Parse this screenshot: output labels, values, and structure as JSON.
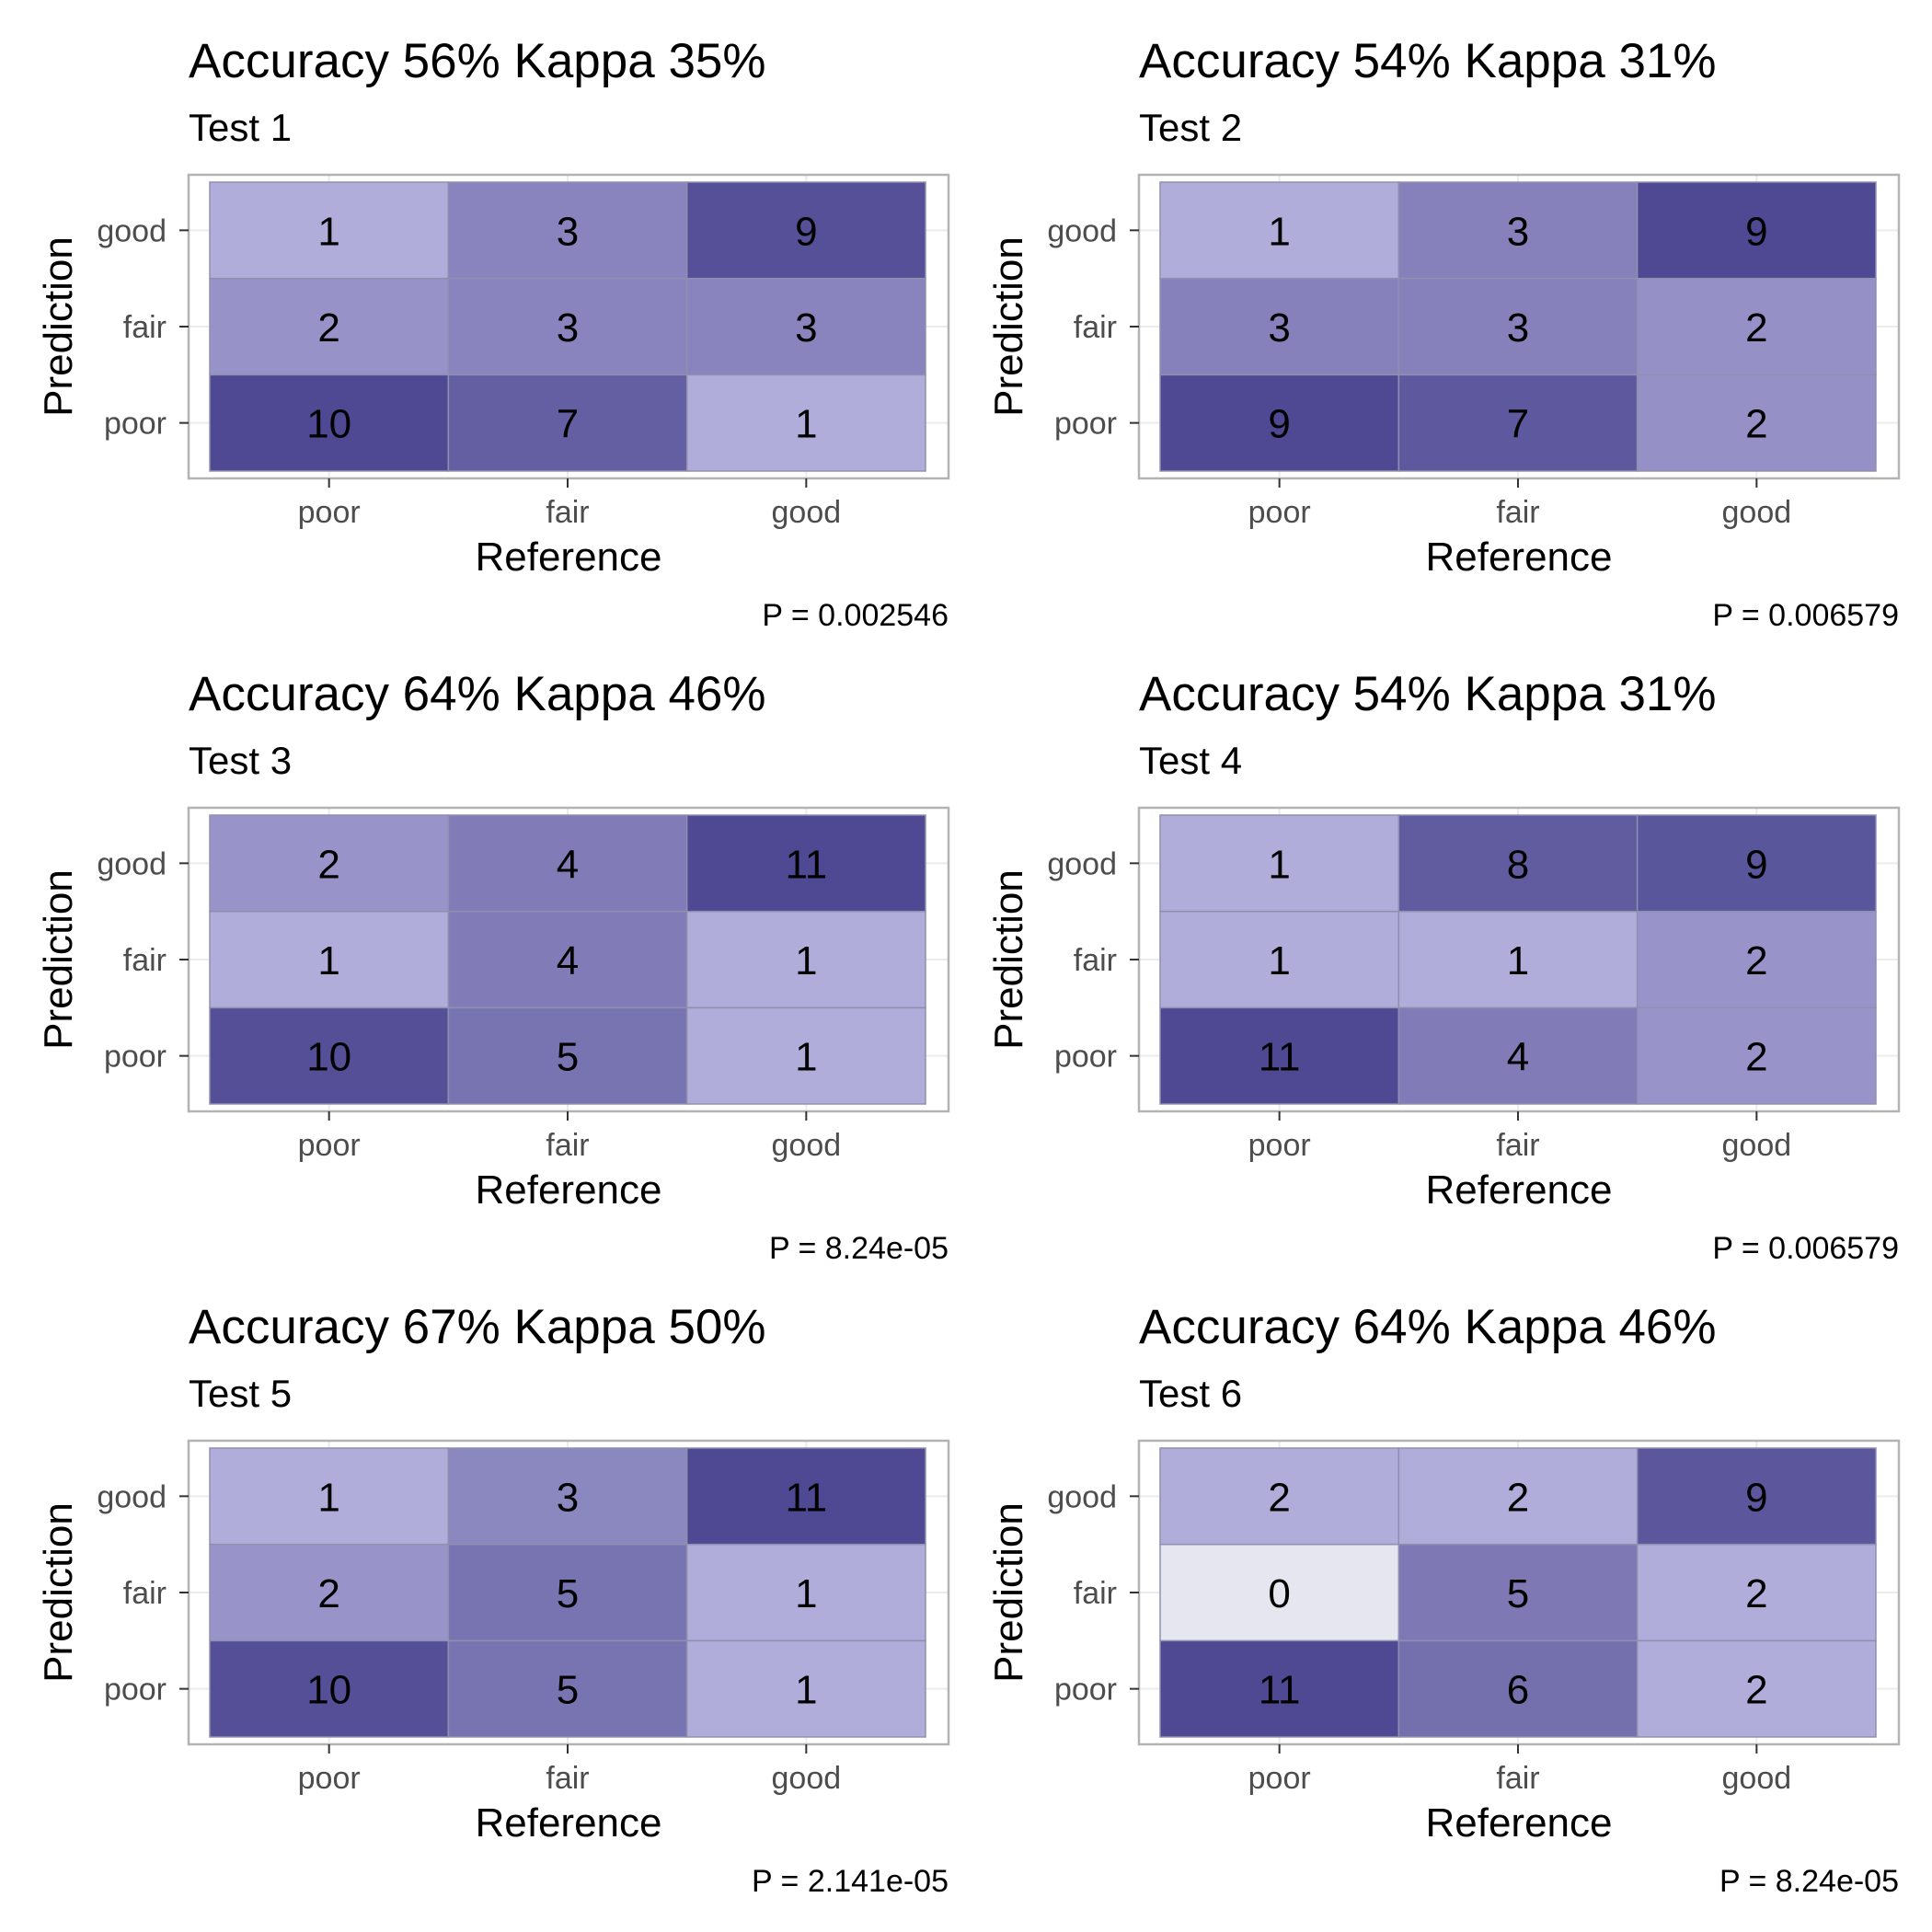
{
  "chart_data": [
    {
      "type": "heatmap",
      "title": "Accuracy 56% Kappa 35%",
      "subtitle": "Test 1",
      "xlabel": "Reference",
      "ylabel": "Prediction",
      "x_categories": [
        "poor",
        "fair",
        "good"
      ],
      "y_categories": [
        "poor",
        "fair",
        "good"
      ],
      "matrix": [
        [
          10,
          7,
          1
        ],
        [
          2,
          3,
          3
        ],
        [
          1,
          3,
          9
        ]
      ],
      "caption": "P = 0.002546"
    },
    {
      "type": "heatmap",
      "title": "Accuracy 54% Kappa 31%",
      "subtitle": "Test 2",
      "xlabel": "Reference",
      "ylabel": "Prediction",
      "x_categories": [
        "poor",
        "fair",
        "good"
      ],
      "y_categories": [
        "poor",
        "fair",
        "good"
      ],
      "matrix": [
        [
          9,
          7,
          2
        ],
        [
          3,
          3,
          2
        ],
        [
          1,
          3,
          9
        ]
      ],
      "caption": "P = 0.006579"
    },
    {
      "type": "heatmap",
      "title": "Accuracy 64% Kappa 46%",
      "subtitle": "Test 3",
      "xlabel": "Reference",
      "ylabel": "Prediction",
      "x_categories": [
        "poor",
        "fair",
        "good"
      ],
      "y_categories": [
        "poor",
        "fair",
        "good"
      ],
      "matrix": [
        [
          10,
          5,
          1
        ],
        [
          1,
          4,
          1
        ],
        [
          2,
          4,
          11
        ]
      ],
      "caption": "P = 8.24e-05"
    },
    {
      "type": "heatmap",
      "title": "Accuracy 54% Kappa 31%",
      "subtitle": "Test 4",
      "xlabel": "Reference",
      "ylabel": "Prediction",
      "x_categories": [
        "poor",
        "fair",
        "good"
      ],
      "y_categories": [
        "poor",
        "fair",
        "good"
      ],
      "matrix": [
        [
          11,
          4,
          2
        ],
        [
          1,
          1,
          2
        ],
        [
          1,
          8,
          9
        ]
      ],
      "caption": "P = 0.006579"
    },
    {
      "type": "heatmap",
      "title": "Accuracy 67% Kappa 50%",
      "subtitle": "Test 5",
      "xlabel": "Reference",
      "ylabel": "Prediction",
      "x_categories": [
        "poor",
        "fair",
        "good"
      ],
      "y_categories": [
        "poor",
        "fair",
        "good"
      ],
      "matrix": [
        [
          10,
          5,
          1
        ],
        [
          2,
          5,
          1
        ],
        [
          1,
          3,
          11
        ]
      ],
      "caption": "P = 2.141e-05"
    },
    {
      "type": "heatmap",
      "title": "Accuracy 64% Kappa 46%",
      "subtitle": "Test 6",
      "xlabel": "Reference",
      "ylabel": "Prediction",
      "x_categories": [
        "poor",
        "fair",
        "good"
      ],
      "y_categories": [
        "poor",
        "fair",
        "good"
      ],
      "matrix": [
        [
          11,
          6,
          2
        ],
        [
          0,
          5,
          2
        ],
        [
          2,
          2,
          9
        ]
      ],
      "caption": "P = 8.24e-05"
    }
  ],
  "colors": {
    "zero": "#e6e6f0",
    "low": "#b1addb",
    "high": "#4e4992",
    "cell_border": "#8f8fb0",
    "panel_border": "#b3b3b3",
    "grid": "#ebebeb",
    "tick_text": "#4d4d4d"
  }
}
